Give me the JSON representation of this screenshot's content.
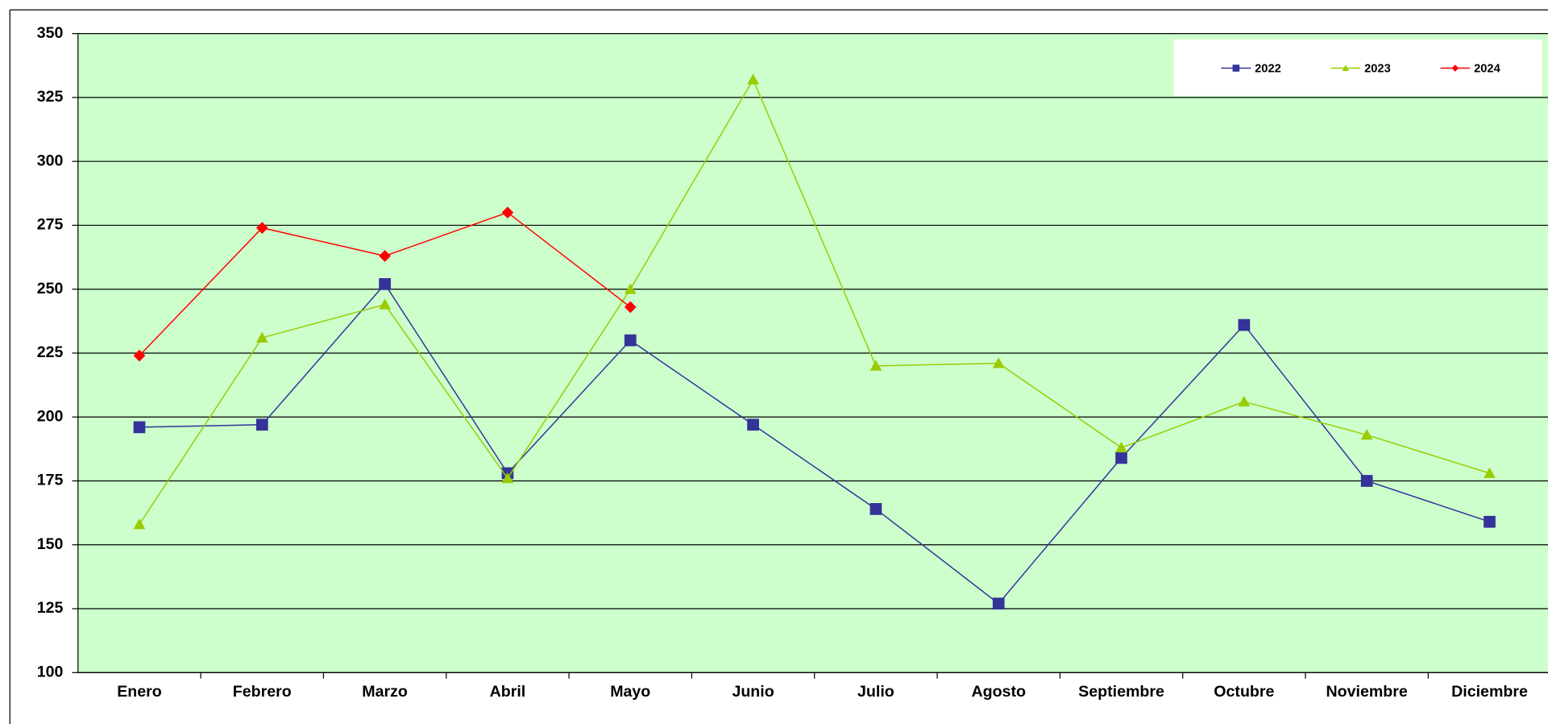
{
  "chart_data": {
    "type": "line",
    "categories": [
      "Enero",
      "Febrero",
      "Marzo",
      "Abril",
      "Mayo",
      "Junio",
      "Julio",
      "Agosto",
      "Septiembre",
      "Octubre",
      "Noviembre",
      "Diciembre"
    ],
    "series": [
      {
        "name": "2022",
        "color": "#333399",
        "marker": "square",
        "values": [
          196,
          197,
          252,
          178,
          230,
          197,
          164,
          127,
          184,
          236,
          175,
          159
        ]
      },
      {
        "name": "2023",
        "color": "#99cc00",
        "marker": "triangle",
        "values": [
          158,
          231,
          244,
          176,
          250,
          332,
          220,
          221,
          188,
          206,
          193,
          178
        ]
      },
      {
        "name": "2024",
        "color": "#ff0000",
        "marker": "diamond",
        "values": [
          224,
          274,
          263,
          280,
          243,
          null,
          null,
          null,
          null,
          null,
          null,
          null
        ]
      }
    ],
    "ylim": [
      100,
      350
    ],
    "yticks": [
      100,
      125,
      150,
      175,
      200,
      225,
      250,
      275,
      300,
      325,
      350
    ],
    "grid": true,
    "legend": "top-right",
    "background": "#ccffcc"
  }
}
